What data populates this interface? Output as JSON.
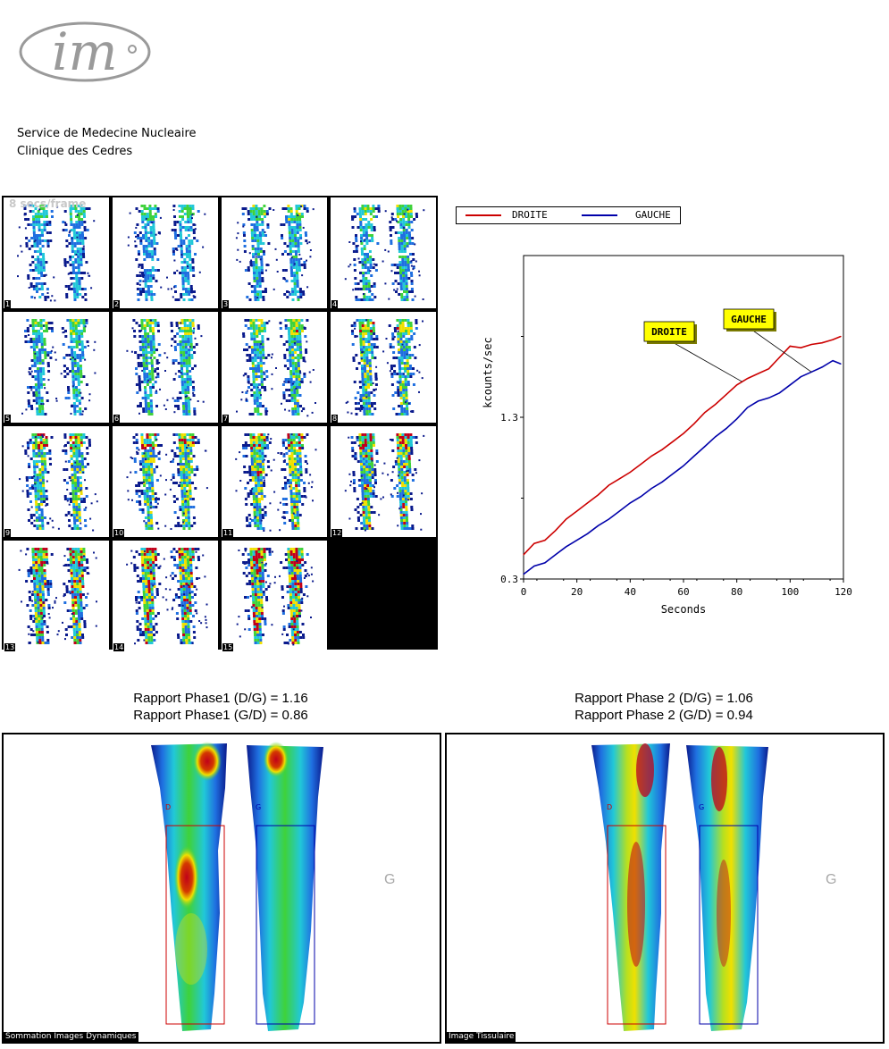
{
  "header": {
    "logo_text": "im",
    "line1": "Service de Medecine Nucleaire",
    "line2": "Clinique des Cedres"
  },
  "frames_panel": {
    "caption": "8 secs/frame",
    "frames": [
      "1",
      "2",
      "3",
      "4",
      "5",
      "6",
      "7",
      "8",
      "9",
      "10",
      "11",
      "12",
      "13",
      "14",
      "15"
    ]
  },
  "legend": {
    "series1": "DROITE",
    "series2": "GAUCHE",
    "color1": "#cc0000",
    "color2": "#0000aa"
  },
  "chart_data": {
    "type": "line",
    "xlabel": "Seconds",
    "ylabel": "kcounts/sec",
    "xlim": [
      0,
      120
    ],
    "ylim": [
      0.3,
      2.3
    ],
    "x_ticks": [
      0,
      20,
      40,
      60,
      80,
      100,
      120
    ],
    "y_tick_labels": [
      0.3,
      1.3
    ],
    "annotations": [
      "DROITE",
      "GAUCHE"
    ],
    "series": [
      {
        "name": "DROITE",
        "color": "#cc0000",
        "x": [
          0,
          4,
          8,
          12,
          16,
          20,
          24,
          28,
          32,
          36,
          40,
          44,
          48,
          52,
          56,
          60,
          64,
          68,
          72,
          76,
          80,
          84,
          88,
          92,
          96,
          100,
          104,
          108,
          112,
          116,
          119
        ],
        "y": [
          0.45,
          0.52,
          0.54,
          0.6,
          0.67,
          0.72,
          0.77,
          0.82,
          0.88,
          0.92,
          0.96,
          1.01,
          1.06,
          1.1,
          1.15,
          1.2,
          1.26,
          1.33,
          1.38,
          1.44,
          1.5,
          1.54,
          1.57,
          1.6,
          1.67,
          1.74,
          1.73,
          1.75,
          1.76,
          1.78,
          1.8
        ]
      },
      {
        "name": "GAUCHE",
        "color": "#0000aa",
        "x": [
          0,
          4,
          8,
          12,
          16,
          20,
          24,
          28,
          32,
          36,
          40,
          44,
          48,
          52,
          56,
          60,
          64,
          68,
          72,
          76,
          80,
          84,
          88,
          92,
          96,
          100,
          104,
          108,
          112,
          116,
          119
        ],
        "y": [
          0.33,
          0.38,
          0.4,
          0.45,
          0.5,
          0.54,
          0.58,
          0.63,
          0.67,
          0.72,
          0.77,
          0.81,
          0.86,
          0.9,
          0.95,
          1.0,
          1.06,
          1.12,
          1.18,
          1.23,
          1.29,
          1.36,
          1.4,
          1.42,
          1.45,
          1.5,
          1.55,
          1.58,
          1.61,
          1.65,
          1.63
        ]
      }
    ]
  },
  "phase1": {
    "line1": "Rapport Phase1 (D/G) = 1.16",
    "line2": "Rapport Phase1 (G/D) = 0.86",
    "caption": "Sommation Images Dynamiques",
    "d_label": "D",
    "g_label": "G",
    "g_mark": "G"
  },
  "phase2": {
    "line1": "Rapport Phase 2 (D/G) = 1.06",
    "line2": "Rapport Phase 2 (G/D) = 0.94",
    "caption": "Image Tissulaire",
    "d_label": "D",
    "g_label": "G",
    "g_mark": "G"
  }
}
